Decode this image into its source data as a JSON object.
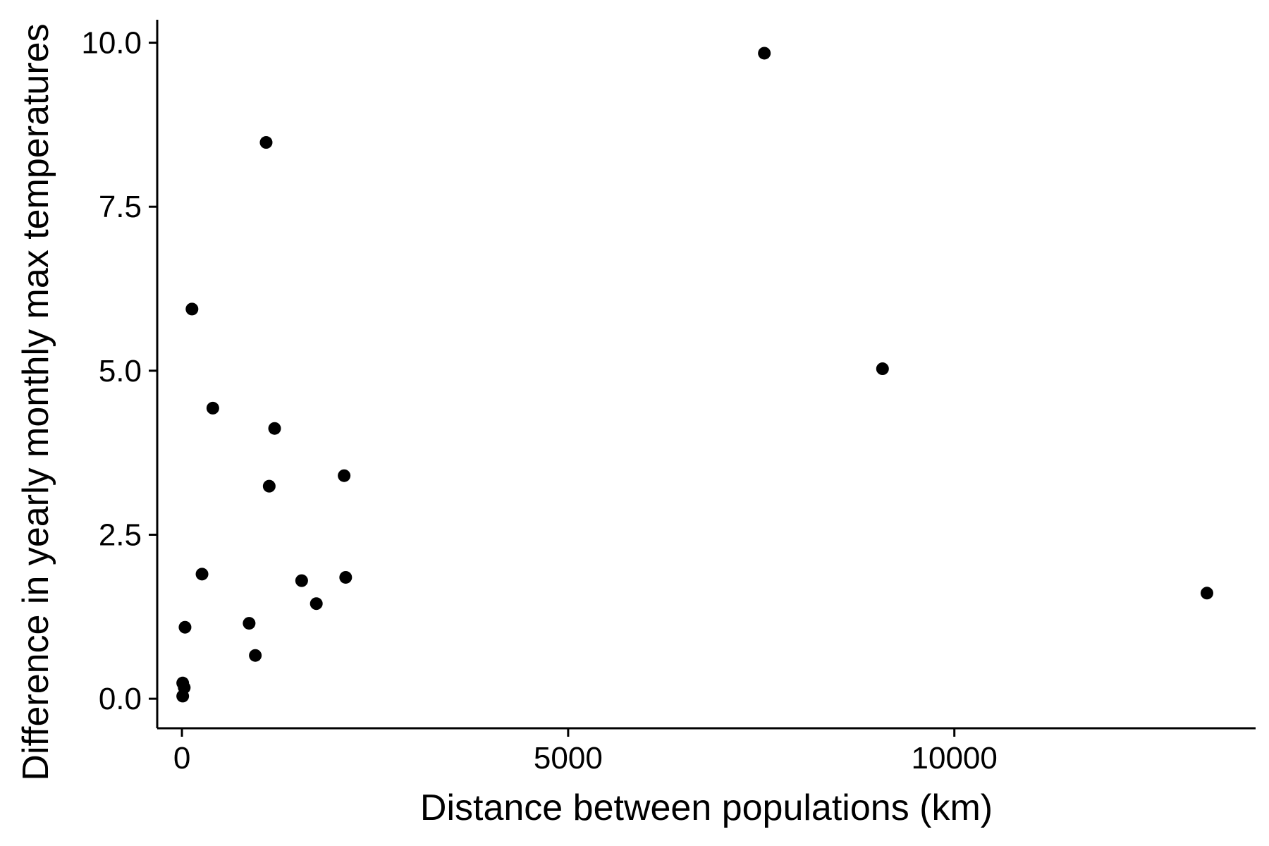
{
  "chart_data": {
    "type": "scatter",
    "title": "",
    "xlabel": "Distance between populations (km)",
    "ylabel": "Difference in yearly monthly max temperatures",
    "xlim": [
      -320,
      13900
    ],
    "ylim": [
      -0.45,
      10.35
    ],
    "x_ticks": [
      {
        "value": 0,
        "label": "0"
      },
      {
        "value": 5000,
        "label": "5000"
      },
      {
        "value": 10000,
        "label": "10000"
      }
    ],
    "y_ticks": [
      {
        "value": 0.0,
        "label": "0.0"
      },
      {
        "value": 2.5,
        "label": "2.5"
      },
      {
        "value": 5.0,
        "label": "5.0"
      },
      {
        "value": 7.5,
        "label": "7.5"
      },
      {
        "value": 10.0,
        "label": "10.0"
      }
    ],
    "grid": false,
    "legend": "none",
    "point_color": "#000000",
    "points": [
      {
        "x": 7540,
        "y": 9.84
      },
      {
        "x": 1090,
        "y": 8.48
      },
      {
        "x": 130,
        "y": 5.94
      },
      {
        "x": 9070,
        "y": 5.03
      },
      {
        "x": 400,
        "y": 4.43
      },
      {
        "x": 1200,
        "y": 4.12
      },
      {
        "x": 2100,
        "y": 3.4
      },
      {
        "x": 1130,
        "y": 3.24
      },
      {
        "x": 260,
        "y": 1.9
      },
      {
        "x": 2120,
        "y": 1.85
      },
      {
        "x": 1550,
        "y": 1.8
      },
      {
        "x": 13270,
        "y": 1.61
      },
      {
        "x": 1740,
        "y": 1.45
      },
      {
        "x": 870,
        "y": 1.15
      },
      {
        "x": 40,
        "y": 1.09
      },
      {
        "x": 950,
        "y": 0.66
      },
      {
        "x": 10,
        "y": 0.24
      },
      {
        "x": 30,
        "y": 0.17
      },
      {
        "x": 10,
        "y": 0.04
      }
    ]
  }
}
